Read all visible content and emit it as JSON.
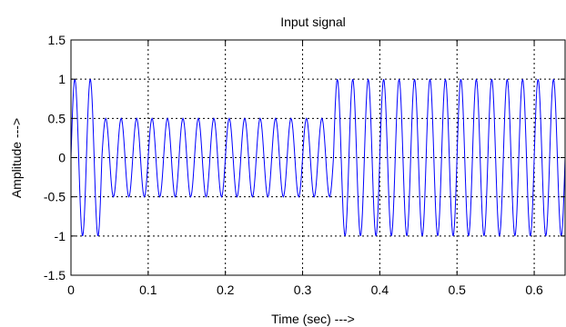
{
  "chart_data": {
    "type": "line",
    "title": "Input signal",
    "xlabel": "Time (sec) --->",
    "ylabel": "Amplitude --->",
    "xlim": [
      0,
      0.64
    ],
    "ylim": [
      -1.5,
      1.5
    ],
    "grid": true,
    "grid_style": "dotted",
    "x_ticks": [
      0,
      0.1,
      0.2,
      0.3,
      0.4,
      0.5,
      0.6
    ],
    "x_tick_labels": [
      "0",
      "0.1",
      "0.2",
      "0.3",
      "0.4",
      "0.5",
      "0.6"
    ],
    "y_ticks": [
      -1.5,
      -1,
      -0.5,
      0,
      0.5,
      1,
      1.5
    ],
    "y_tick_labels": [
      "-1.5",
      "-1",
      "-0.5",
      "0",
      "0.5",
      "1",
      "1.5"
    ],
    "series": [
      {
        "color": "#0000ff",
        "segments": [
          {
            "x_start": 0,
            "x_end": 0.04,
            "amplitude": 1,
            "frequency_hz": 50
          },
          {
            "x_start": 0.04,
            "x_end": 0.34,
            "amplitude": 0.5,
            "frequency_hz": 50
          },
          {
            "x_start": 0.34,
            "x_end": 0.64,
            "amplitude": 1,
            "frequency_hz": 50
          }
        ]
      }
    ]
  }
}
